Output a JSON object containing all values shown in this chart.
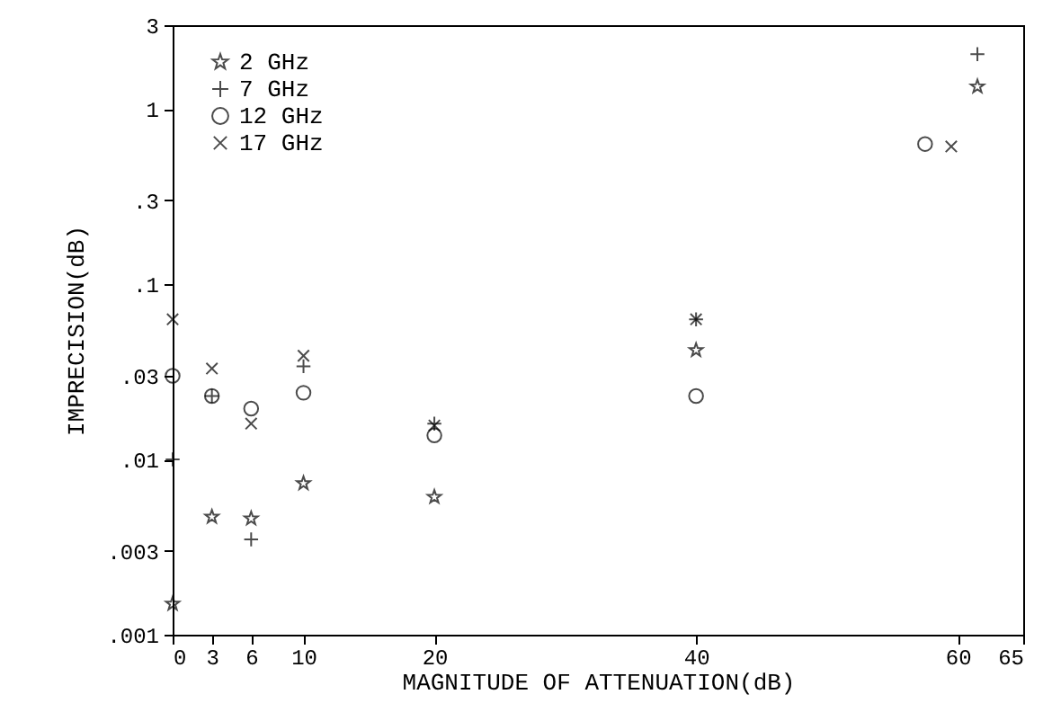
{
  "chart_data": {
    "type": "scatter",
    "xlabel": "MAGNITUDE OF ATTENUATION(dB)",
    "ylabel": "IMPRECISION(dB)",
    "log": "y",
    "grid": false,
    "legend": "top left",
    "xlim": [
      0,
      65
    ],
    "xticks": [
      0,
      3,
      6,
      10,
      20,
      40,
      60,
      65
    ],
    "ylim": [
      0.001,
      3
    ],
    "yticks": [
      {
        "value": 0.001,
        "label": ".001"
      },
      {
        "value": 0.003,
        "label": ".003"
      },
      {
        "value": 0.01,
        "label": ".01"
      },
      {
        "value": 0.03,
        "label": ".03"
      },
      {
        "value": 0.1,
        "label": ".1"
      },
      {
        "value": 0.3,
        "label": ".3"
      },
      1,
      3
    ],
    "series": [
      {
        "name": "2 GHz",
        "color": "#000000",
        "marker": "star",
        "x": [
          0,
          3,
          6,
          10,
          20,
          40,
          61.5
        ],
        "values": [
          0.0015,
          0.0047,
          0.0046,
          0.0073,
          0.0061,
          0.042,
          1.34
        ]
      },
      {
        "name": "7 GHz",
        "color": "#000000",
        "marker": "cross",
        "x": [
          0,
          3,
          6,
          10,
          20,
          40,
          61.5
        ],
        "values": [
          0.01,
          0.023,
          0.0035,
          0.034,
          0.016,
          0.063,
          2.05
        ]
      },
      {
        "name": "12 GHz",
        "color": "#000000",
        "marker": "circle",
        "x": [
          0,
          3,
          6,
          10,
          20,
          40,
          57.5
        ],
        "values": [
          0.03,
          0.023,
          0.0195,
          0.024,
          0.0137,
          0.023,
          0.63
        ]
      },
      {
        "name": "17 GHz",
        "color": "#000000",
        "marker": "x",
        "x": [
          0,
          3,
          6,
          10,
          20,
          40,
          59.5
        ],
        "values": [
          0.063,
          0.033,
          0.016,
          0.039,
          0.0156,
          0.063,
          0.61
        ]
      }
    ]
  }
}
